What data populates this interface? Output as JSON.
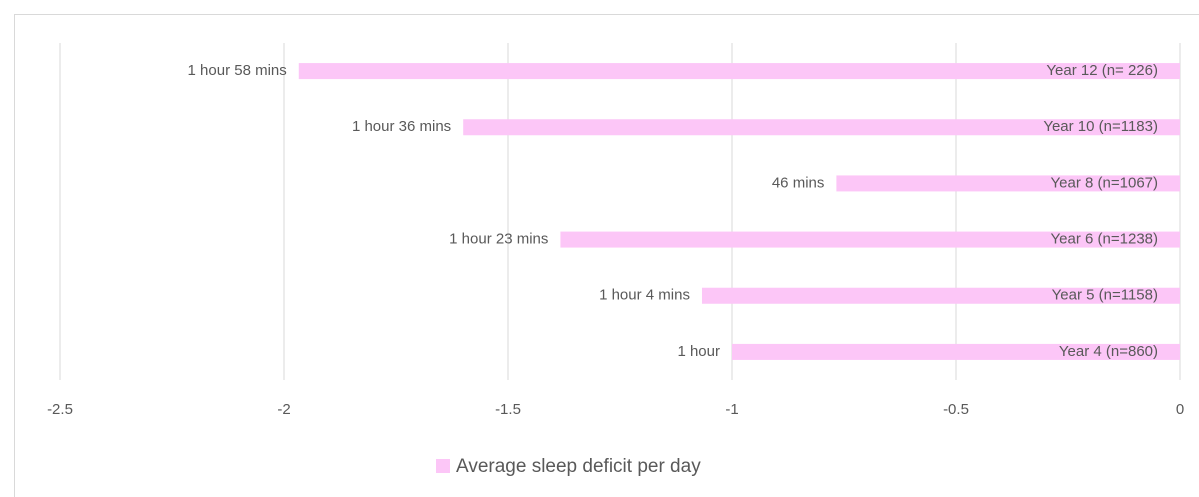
{
  "chart_data": {
    "type": "bar",
    "orientation": "horizontal",
    "categories": [
      "Year 12  (n= 226)",
      "Year 10 (n=1183)",
      "Year 8 (n=1067)",
      "Year 6 (n=1238)",
      "Year 5 (n=1158)",
      "Year 4 (n=860)"
    ],
    "series": [
      {
        "name": "Average sleep deficit per day",
        "color": "#fcc6f7",
        "values": [
          -1.967,
          -1.6,
          -0.767,
          -1.383,
          -1.067,
          -1.0
        ],
        "value_labels": [
          "1 hour  58 mins",
          "1 hour 36 mins",
          "46 mins",
          "1 hour  23 mins",
          "1 hour 4 mins",
          "1 hour"
        ]
      }
    ],
    "xlim": [
      -2.5,
      0
    ],
    "xticks": [
      -2.5,
      -2,
      -1.5,
      -1,
      -0.5,
      0
    ],
    "grid": true,
    "legend": "bottom"
  }
}
